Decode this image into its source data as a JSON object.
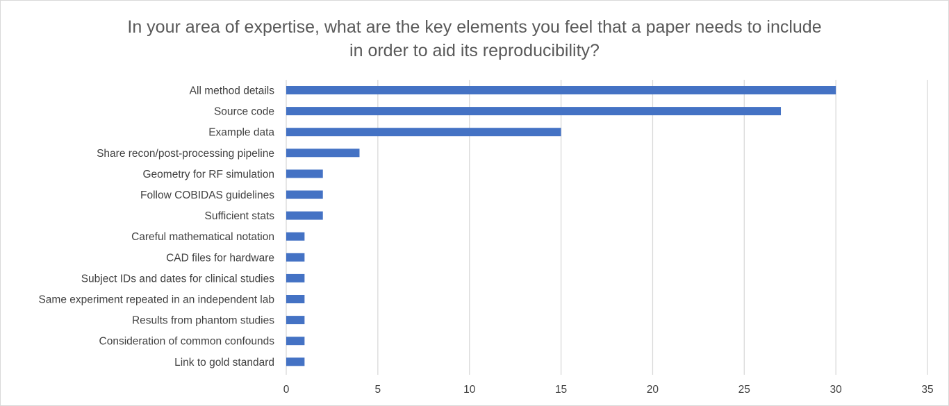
{
  "chart_data": {
    "type": "bar",
    "orientation": "horizontal",
    "title": "In your area of expertise, what are the key elements you feel that a paper needs to include\nin order to aid its reproducibility?",
    "categories": [
      "All method details",
      "Source code",
      "Example data",
      "Share recon/post-processing pipeline",
      "Geometry for RF simulation",
      "Follow COBIDAS guidelines",
      "Sufficient stats",
      "Careful mathematical notation",
      "CAD files for hardware ",
      "Subject IDs and dates for clinical studies",
      "Same experiment repeated in an independent lab",
      "Results from phantom studies",
      "Consideration of common confounds",
      "Link to gold standard"
    ],
    "values": [
      30,
      27,
      15,
      4,
      2,
      2,
      2,
      1,
      1,
      1,
      1,
      1,
      1,
      1
    ],
    "xlim": [
      0,
      35
    ],
    "xticks": [
      "0",
      "5",
      "10",
      "15",
      "20",
      "25",
      "30",
      "35"
    ],
    "xlabel": "",
    "ylabel": "",
    "grid": "vertical",
    "bar_color": "#4472c4",
    "grid_color": "#d9d9d9"
  }
}
